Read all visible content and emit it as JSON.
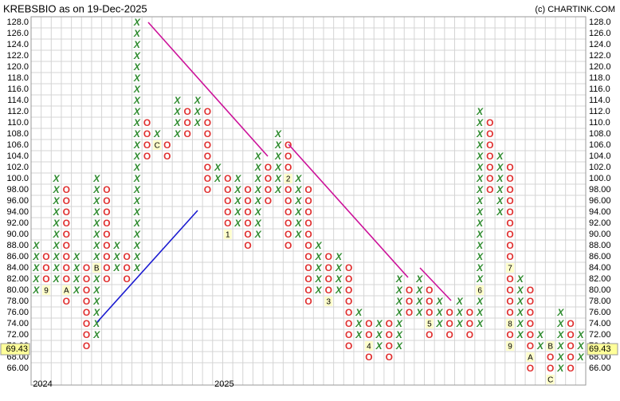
{
  "chart_data": {
    "type": "point_and_figure",
    "title": "KREBSBIO as on 19-Dec-2025",
    "credit": "(c) CHARTINK.COM",
    "box_size": 2,
    "x_color": "#2e8b2e",
    "o_color": "#e03030",
    "grid": true,
    "ylim": [
      64,
      128
    ],
    "yticks": [
      {
        "value": 66,
        "label": "66.00"
      },
      {
        "value": 68,
        "label": "68.00"
      },
      {
        "value": 70,
        "label": "70.00"
      },
      {
        "value": 72,
        "label": "72.00"
      },
      {
        "value": 74,
        "label": "74.00"
      },
      {
        "value": 76,
        "label": "76.00"
      },
      {
        "value": 78,
        "label": "78.00"
      },
      {
        "value": 80,
        "label": "80.00"
      },
      {
        "value": 82,
        "label": "82.00"
      },
      {
        "value": 84,
        "label": "84.00"
      },
      {
        "value": 86,
        "label": "86.00"
      },
      {
        "value": 88,
        "label": "88.00"
      },
      {
        "value": 90,
        "label": "90.00"
      },
      {
        "value": 92,
        "label": "92.00"
      },
      {
        "value": 94,
        "label": "94.00"
      },
      {
        "value": 96,
        "label": "96.00"
      },
      {
        "value": 98,
        "label": "98.00"
      },
      {
        "value": 100,
        "label": "100.0"
      },
      {
        "value": 102,
        "label": "102.0"
      },
      {
        "value": 104,
        "label": "104.0"
      },
      {
        "value": 106,
        "label": "106.0"
      },
      {
        "value": 108,
        "label": "108.0"
      },
      {
        "value": 110,
        "label": "110.0"
      },
      {
        "value": 112,
        "label": "112.0"
      },
      {
        "value": 114,
        "label": "114.0"
      },
      {
        "value": 116,
        "label": "116.0"
      },
      {
        "value": 118,
        "label": "118.0"
      },
      {
        "value": 120,
        "label": "120.0"
      },
      {
        "value": 122,
        "label": "122.0"
      },
      {
        "value": 124,
        "label": "124.0"
      },
      {
        "value": 126,
        "label": "126.0"
      },
      {
        "value": 128,
        "label": "128.0"
      }
    ],
    "last_price": 69.43,
    "columns": [
      {
        "type": "X",
        "low": 80,
        "high": 88,
        "year": "2024"
      },
      {
        "type": "O",
        "low": 80,
        "high": 86,
        "markers": [
          {
            "value": 80,
            "label": "9"
          }
        ]
      },
      {
        "type": "X",
        "low": 82,
        "high": 100
      },
      {
        "type": "O",
        "low": 78,
        "high": 98,
        "markers": [
          {
            "value": 80,
            "label": "A"
          }
        ]
      },
      {
        "type": "X",
        "low": 80,
        "high": 86
      },
      {
        "type": "O",
        "low": 70,
        "high": 84
      },
      {
        "type": "X",
        "low": 72,
        "high": 100,
        "markers": [
          {
            "value": 84,
            "label": "B"
          }
        ]
      },
      {
        "type": "O",
        "low": 82,
        "high": 98
      },
      {
        "type": "X",
        "low": 84,
        "high": 88
      },
      {
        "type": "O",
        "low": 82,
        "high": 86
      },
      {
        "type": "X",
        "low": 84,
        "high": 128
      },
      {
        "type": "O",
        "low": 104,
        "high": 110
      },
      {
        "type": "X",
        "low": 106,
        "high": 108,
        "markers": [
          {
            "value": 106,
            "label": "C"
          }
        ]
      },
      {
        "type": "O",
        "low": 104,
        "high": 106
      },
      {
        "type": "X",
        "low": 108,
        "high": 114
      },
      {
        "type": "O",
        "low": 108,
        "high": 112
      },
      {
        "type": "X",
        "low": 110,
        "high": 114
      },
      {
        "type": "O",
        "low": 98,
        "high": 112
      },
      {
        "type": "X",
        "low": 100,
        "high": 102,
        "year": "2025"
      },
      {
        "type": "O",
        "low": 90,
        "high": 100,
        "markers": [
          {
            "value": 90,
            "label": "1"
          }
        ]
      },
      {
        "type": "X",
        "low": 92,
        "high": 100
      },
      {
        "type": "O",
        "low": 88,
        "high": 98
      },
      {
        "type": "X",
        "low": 90,
        "high": 104
      },
      {
        "type": "O",
        "low": 96,
        "high": 102
      },
      {
        "type": "X",
        "low": 98,
        "high": 108
      },
      {
        "type": "O",
        "low": 88,
        "high": 106,
        "markers": [
          {
            "value": 100,
            "label": "2"
          }
        ]
      },
      {
        "type": "X",
        "low": 90,
        "high": 100
      },
      {
        "type": "O",
        "low": 78,
        "high": 98
      },
      {
        "type": "X",
        "low": 80,
        "high": 88
      },
      {
        "type": "O",
        "low": 78,
        "high": 86,
        "markers": [
          {
            "value": 78,
            "label": "3"
          }
        ]
      },
      {
        "type": "X",
        "low": 80,
        "high": 86
      },
      {
        "type": "O",
        "low": 70,
        "high": 84
      },
      {
        "type": "X",
        "low": 72,
        "high": 76
      },
      {
        "type": "O",
        "low": 68,
        "high": 74,
        "markers": [
          {
            "value": 70,
            "label": "4"
          }
        ]
      },
      {
        "type": "X",
        "low": 70,
        "high": 74
      },
      {
        "type": "O",
        "low": 68,
        "high": 74
      },
      {
        "type": "X",
        "low": 70,
        "high": 82
      },
      {
        "type": "O",
        "low": 76,
        "high": 80
      },
      {
        "type": "X",
        "low": 76,
        "high": 82
      },
      {
        "type": "O",
        "low": 72,
        "high": 80,
        "markers": [
          {
            "value": 74,
            "label": "5"
          }
        ]
      },
      {
        "type": "X",
        "low": 74,
        "high": 78
      },
      {
        "type": "O",
        "low": 72,
        "high": 76
      },
      {
        "type": "X",
        "low": 74,
        "high": 78
      },
      {
        "type": "O",
        "low": 72,
        "high": 76
      },
      {
        "type": "X",
        "low": 74,
        "high": 112,
        "markers": [
          {
            "value": 80,
            "label": "6"
          }
        ]
      },
      {
        "type": "O",
        "low": 98,
        "high": 110
      },
      {
        "type": "X",
        "low": 94,
        "high": 104
      },
      {
        "type": "O",
        "low": 70,
        "high": 102,
        "markers": [
          {
            "value": 84,
            "label": "7"
          },
          {
            "value": 74,
            "label": "8"
          },
          {
            "value": 70,
            "label": "9"
          }
        ]
      },
      {
        "type": "X",
        "low": 72,
        "high": 82
      },
      {
        "type": "O",
        "low": 66,
        "high": 80,
        "markers": [
          {
            "value": 68,
            "label": "A"
          }
        ]
      },
      {
        "type": "X",
        "low": 70,
        "high": 72
      },
      {
        "type": "O",
        "low": 64,
        "high": 70,
        "markers": [
          {
            "value": 70,
            "label": "B"
          },
          {
            "value": 64,
            "label": "C"
          }
        ]
      },
      {
        "type": "X",
        "low": 66,
        "high": 76
      },
      {
        "type": "O",
        "low": 66,
        "high": 74
      },
      {
        "type": "X",
        "low": 68,
        "high": 72
      }
    ]
  }
}
